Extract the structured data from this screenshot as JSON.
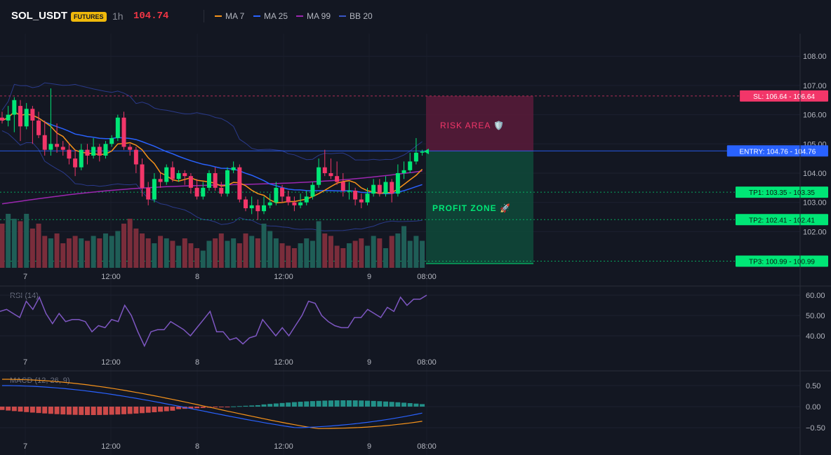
{
  "header": {
    "symbol": "SOL_USDT",
    "badge": "FUTURES",
    "timeframe": "1h",
    "price": "104.74",
    "legend": [
      {
        "label": "MA 7",
        "color": "#f7931a"
      },
      {
        "label": "MA 25",
        "color": "#2962ff"
      },
      {
        "label": "MA 99",
        "color": "#9c27b0"
      },
      {
        "label": "BB 20",
        "color": "#3a56c5"
      }
    ]
  },
  "price_axis": {
    "ticks": [
      "108.00",
      "107.00",
      "106.00",
      "105.00",
      "104.00",
      "103.00",
      "102.00"
    ],
    "values": [
      108,
      107,
      106,
      105,
      104,
      103,
      102
    ]
  },
  "time_axis": {
    "labels": [
      "7",
      "12:00",
      "8",
      "12:00",
      "9",
      "08:00"
    ]
  },
  "levels": {
    "sl": {
      "label": "SL: 106.64",
      "value": "106.64",
      "price": 106.64,
      "color": "#f23669"
    },
    "entry": {
      "label": "ENTRY: 104.76",
      "value": "104.76",
      "price": 104.76,
      "color": "#2962ff"
    },
    "tp1": {
      "label": "TP1: 103.35",
      "value": "103.35",
      "price": 103.35,
      "color": "#00e676"
    },
    "tp2": {
      "label": "TP2: 102.41",
      "value": "102.41",
      "price": 102.41,
      "color": "#00e676"
    },
    "tp3": {
      "label": "TP3: 100.99",
      "value": "100.99",
      "price": 100.99,
      "color": "#00e676"
    }
  },
  "zones": {
    "risk": "RISK AREA 🛡️",
    "profit": "PROFIT ZONE 🚀"
  },
  "rsi": {
    "title": "RSI (14)",
    "ticks": [
      "60.00",
      "50.00",
      "40.00"
    ],
    "tick_values": [
      60,
      50,
      40
    ],
    "values": [
      52,
      53,
      51,
      49,
      57,
      53,
      59,
      51,
      46,
      51,
      47,
      48,
      48,
      47,
      42,
      45,
      44,
      48,
      47,
      55,
      50,
      42,
      35,
      42,
      43,
      43,
      47,
      45,
      43,
      40,
      44,
      48,
      52,
      42,
      42,
      38,
      39,
      36,
      39,
      40,
      48,
      44,
      40,
      44,
      40,
      45,
      50,
      57,
      56,
      50,
      47,
      45,
      44,
      44,
      49,
      49,
      53,
      51,
      49,
      54,
      52,
      59,
      55,
      58,
      58,
      60
    ]
  },
  "macd": {
    "title": "MACD (12, 26, 9)",
    "ticks": [
      "0.50",
      "0.00",
      "−0.50"
    ],
    "tick_values": [
      0.5,
      0,
      -0.5
    ]
  },
  "candles": [
    [
      105.9,
      105.8,
      106.1,
      105.7
    ],
    [
      105.8,
      106.0,
      106.3,
      105.6
    ],
    [
      106.0,
      106.5,
      106.6,
      105.4
    ],
    [
      106.3,
      105.6,
      106.5,
      105.1
    ],
    [
      105.6,
      106.2,
      106.4,
      105.5
    ],
    [
      106.2,
      105.8,
      106.3,
      105.0
    ],
    [
      105.8,
      105.3,
      106.1,
      105.2
    ],
    [
      105.3,
      104.8,
      105.8,
      104.6
    ],
    [
      104.8,
      105.0,
      106.9,
      104.6
    ],
    [
      105.0,
      104.9,
      105.7,
      104.7
    ],
    [
      104.9,
      104.8,
      105.1,
      104.6
    ],
    [
      104.8,
      104.5,
      105.0,
      104.3
    ],
    [
      104.5,
      104.2,
      104.8,
      103.9
    ],
    [
      104.2,
      104.8,
      105.0,
      104.1
    ],
    [
      104.8,
      104.6,
      105.0,
      104.3
    ],
    [
      104.6,
      104.9,
      105.2,
      104.5
    ],
    [
      104.9,
      104.6,
      105.0,
      104.4
    ],
    [
      104.6,
      105.0,
      105.1,
      104.5
    ],
    [
      105.0,
      105.2,
      105.3,
      104.9
    ],
    [
      105.2,
      105.9,
      106.0,
      105.1
    ],
    [
      105.9,
      104.9,
      106.1,
      104.8
    ],
    [
      104.9,
      104.8,
      105.0,
      104.6
    ],
    [
      104.8,
      104.3,
      104.9,
      104.0
    ],
    [
      104.3,
      103.5,
      104.5,
      103.2
    ],
    [
      103.5,
      103.1,
      103.7,
      102.9
    ],
    [
      103.1,
      103.8,
      104.0,
      103.0
    ],
    [
      103.8,
      103.7,
      104.0,
      103.5
    ],
    [
      103.7,
      104.2,
      104.3,
      103.6
    ],
    [
      104.2,
      103.8,
      104.4,
      103.7
    ],
    [
      103.8,
      104.0,
      104.1,
      103.7
    ],
    [
      104.0,
      103.9,
      104.1,
      103.6
    ],
    [
      103.9,
      103.5,
      104.0,
      103.3
    ],
    [
      103.5,
      103.2,
      103.8,
      103.1
    ],
    [
      103.2,
      103.5,
      103.7,
      103.1
    ],
    [
      103.5,
      104.0,
      104.1,
      103.4
    ],
    [
      104.0,
      103.5,
      104.2,
      103.4
    ],
    [
      103.5,
      103.3,
      103.7,
      103.2
    ],
    [
      103.3,
      104.1,
      104.2,
      103.2
    ],
    [
      104.1,
      104.2,
      104.4,
      104.0
    ],
    [
      104.2,
      103.1,
      104.3,
      103.0
    ],
    [
      103.1,
      102.8,
      103.2,
      102.7
    ],
    [
      102.8,
      102.9,
      103.2,
      102.6
    ],
    [
      102.9,
      102.7,
      103.1,
      102.4
    ],
    [
      102.7,
      102.9,
      103.2,
      102.6
    ],
    [
      102.9,
      103.0,
      103.3,
      102.8
    ],
    [
      103.0,
      103.5,
      103.7,
      102.9
    ],
    [
      103.5,
      103.2,
      103.6,
      103.0
    ],
    [
      103.2,
      103.0,
      103.4,
      102.9
    ],
    [
      103.0,
      102.9,
      103.2,
      102.7
    ],
    [
      102.9,
      103.0,
      103.3,
      102.8
    ],
    [
      103.0,
      103.2,
      103.4,
      102.9
    ],
    [
      103.2,
      103.6,
      103.7,
      103.1
    ],
    [
      103.6,
      104.2,
      104.5,
      103.5
    ],
    [
      104.2,
      104.0,
      104.8,
      103.9
    ],
    [
      104.0,
      103.9,
      104.5,
      103.8
    ],
    [
      103.9,
      103.7,
      104.4,
      103.6
    ],
    [
      103.7,
      103.4,
      104.0,
      103.2
    ],
    [
      103.4,
      103.4,
      103.7,
      103.1
    ],
    [
      103.4,
      103.1,
      103.5,
      102.9
    ],
    [
      103.1,
      103.0,
      103.3,
      102.8
    ],
    [
      103.0,
      103.3,
      103.5,
      102.9
    ],
    [
      103.3,
      103.6,
      103.8,
      103.2
    ],
    [
      103.6,
      103.3,
      103.8,
      103.2
    ],
    [
      103.3,
      103.7,
      103.9,
      103.2
    ],
    [
      103.7,
      103.3,
      103.8,
      103.0
    ],
    [
      103.3,
      104.0,
      104.3,
      103.2
    ],
    [
      104.0,
      104.1,
      104.4,
      103.8
    ],
    [
      104.1,
      104.4,
      104.7,
      104.0
    ],
    [
      104.4,
      104.7,
      105.2,
      104.3
    ],
    [
      104.7,
      104.74,
      104.8,
      104.6
    ]
  ],
  "volumes": [
    18,
    22,
    20,
    19,
    22,
    16,
    18,
    13,
    12,
    14,
    10,
    12,
    13,
    12,
    11,
    13,
    12,
    14,
    13,
    15,
    18,
    20,
    16,
    14,
    12,
    10,
    13,
    12,
    11,
    9,
    12,
    10,
    8,
    7,
    11,
    12,
    14,
    11,
    12,
    10,
    14,
    13,
    12,
    18,
    15,
    12,
    10,
    9,
    8,
    10,
    12,
    11,
    19,
    14,
    13,
    9,
    8,
    10,
    11,
    12,
    9,
    13,
    12,
    8,
    13,
    14,
    17,
    11,
    13,
    11
  ],
  "vol_markers": [
    [
      0,
      "#a83848"
    ],
    [
      17,
      "#2b7b70"
    ]
  ]
}
